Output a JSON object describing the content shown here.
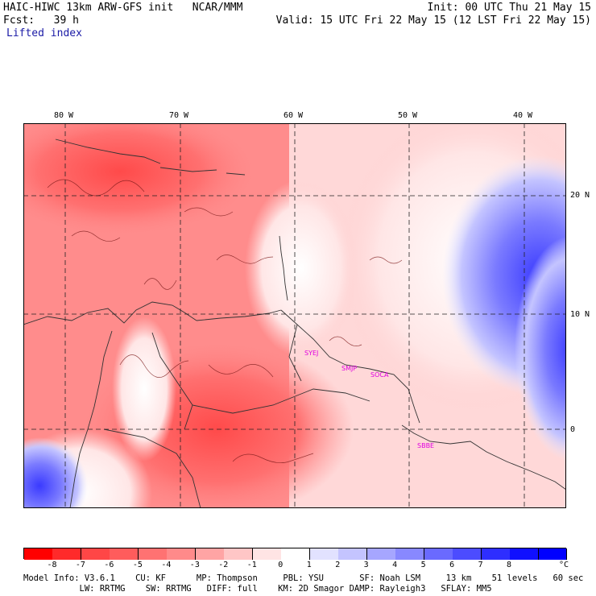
{
  "header": {
    "model_line": "HAIC-HIWC 13km ARW-GFS init   NCAR/MMM",
    "fcst_line": "Fcst:   39 h",
    "field_name": "Lifted index",
    "init_line": "Init: 00 UTC Thu 21 May 15",
    "valid_line": "Valid: 15 UTC Fri 22 May 15 (12 LST Fri 22 May 15)"
  },
  "map": {
    "lon_labels": [
      "80 W",
      "70 W",
      "60 W",
      "50 W",
      "40 W"
    ],
    "lat_labels": [
      "20 N",
      "10 N",
      "0"
    ],
    "stations": [
      "SYEJ",
      "SMJP",
      "SOCA",
      "SBBE"
    ]
  },
  "legend": {
    "unit": "°C",
    "ticks": [
      "-8",
      "-7",
      "-6",
      "-5",
      "-4",
      "-3",
      "-2",
      "-1",
      "0",
      "1",
      "2",
      "3",
      "4",
      "5",
      "6",
      "7",
      "8"
    ],
    "colors": [
      "#ff0000",
      "#ff2a2a",
      "#ff4646",
      "#ff5c5c",
      "#ff7272",
      "#ff8a8a",
      "#ffa4a4",
      "#ffc6c6",
      "#ffe4e4",
      "#ffffff",
      "#e2e2ff",
      "#c4c4ff",
      "#a6a6ff",
      "#8888ff",
      "#6a6aff",
      "#4c4cff",
      "#2e2eff",
      "#1010ff",
      "#0000ff"
    ]
  },
  "footer": {
    "line1": "Model Info: V3.6.1    CU: KF      MP: Thompson     PBL: YSU       SF: Noah LSM     13 km    51 levels   60 sec",
    "line2": "           LW: RRTMG    SW: RRTMG   DIFF: full    KM: 2D Smagor DAMP: Rayleigh3   SFLAY: MM5"
  }
}
